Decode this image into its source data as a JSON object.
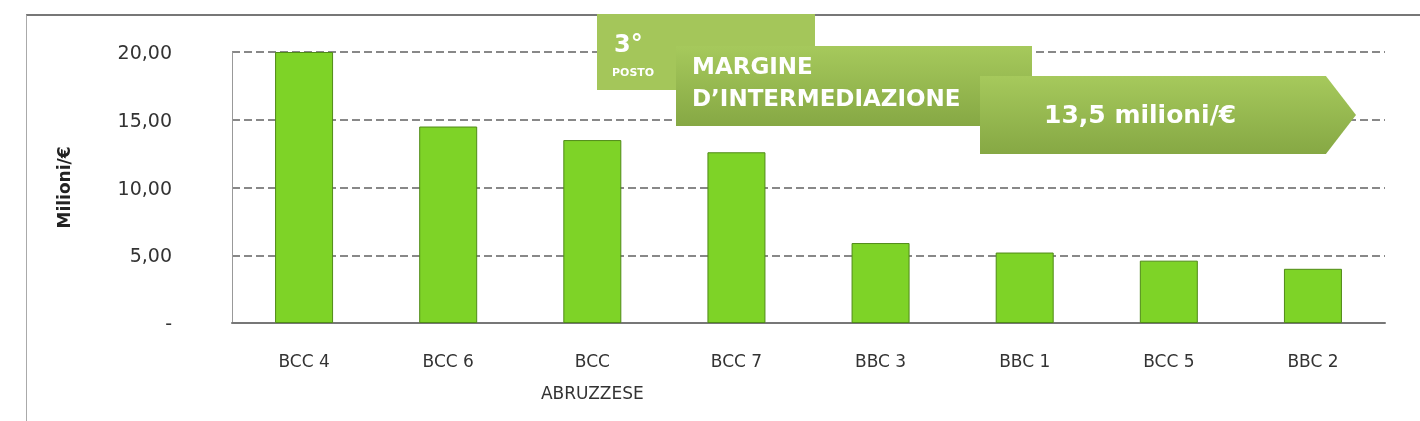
{
  "chart_data": {
    "type": "bar",
    "categories": [
      "BCC 4",
      "BCC 6",
      "BCC\nABRUZZESE",
      "BCC 7",
      "BBC 3",
      "BBC 1",
      "BCC 5",
      "BBC 2"
    ],
    "values": [
      20.0,
      14.5,
      13.5,
      12.6,
      5.9,
      5.2,
      4.6,
      4.0
    ],
    "color": "#7ed327",
    "ylabel": "Milioni/€",
    "ylim": [
      0,
      20
    ],
    "yticks": [
      {
        "value": 0,
        "label": "-"
      },
      {
        "value": 5,
        "label": "5,00"
      },
      {
        "value": 10,
        "label": "10,00"
      },
      {
        "value": 15,
        "label": "15,00"
      },
      {
        "value": 20,
        "label": "20,00"
      }
    ],
    "grid": "y",
    "annotations": [
      "3°",
      "POSTO",
      "MARGINE D’INTERMEDIAZIONE",
      "13,5 milioni/€"
    ]
  }
}
